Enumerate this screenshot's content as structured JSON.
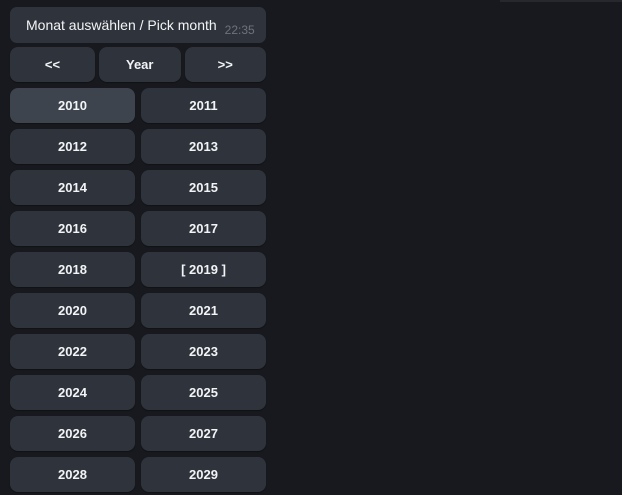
{
  "message": {
    "text": "Monat auswählen / Pick month",
    "time": "22:35"
  },
  "keyboard": {
    "nav": {
      "prev": "<<",
      "mode": "Year",
      "next": ">>"
    },
    "years": [
      "2010",
      "2011",
      "2012",
      "2013",
      "2014",
      "2015",
      "2016",
      "2017",
      "2018",
      "[ 2019 ]",
      "2020",
      "2021",
      "2022",
      "2023",
      "2024",
      "2025",
      "2026",
      "2027",
      "2028",
      "2029"
    ],
    "selected_year": "[ 2019 ]",
    "highlighted_year": "2010"
  },
  "colors": {
    "background": "#17191e",
    "bubble": "#2f343c",
    "button": "#2f343c",
    "button_highlight": "#3e444d",
    "text": "#f2f4f6",
    "timestamp": "#6d737c"
  }
}
